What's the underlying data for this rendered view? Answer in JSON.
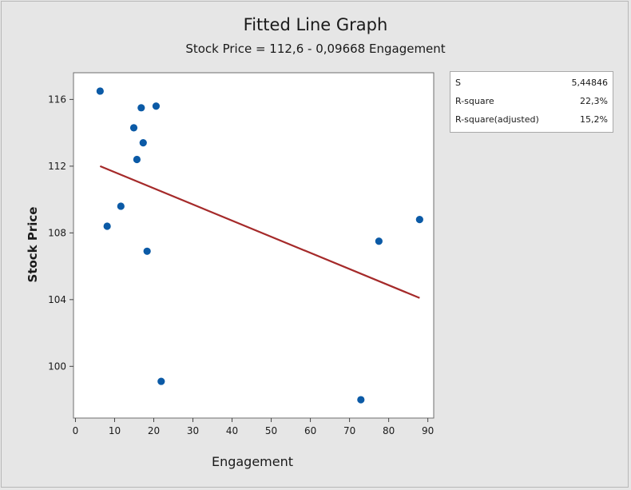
{
  "chart_data": {
    "type": "scatter",
    "title": "Fitted Line Graph",
    "subtitle": "Stock Price = 112,6 - 0,09668 Engagement",
    "xlabel": "Engagement",
    "ylabel": "Stock Price",
    "xlim": [
      -0.5,
      91.5
    ],
    "ylim": [
      96.9,
      117.6
    ],
    "xticks": [
      0,
      10,
      20,
      30,
      40,
      50,
      60,
      70,
      80,
      90
    ],
    "yticks": [
      100,
      104,
      108,
      112,
      116
    ],
    "point_color": "#0b5aa6",
    "line_color": "#a52a2a",
    "points": [
      {
        "x": 6.3,
        "y": 116.5
      },
      {
        "x": 8.1,
        "y": 108.4
      },
      {
        "x": 11.6,
        "y": 109.6
      },
      {
        "x": 14.9,
        "y": 114.3
      },
      {
        "x": 15.7,
        "y": 112.4
      },
      {
        "x": 16.8,
        "y": 115.5
      },
      {
        "x": 17.3,
        "y": 113.4
      },
      {
        "x": 18.3,
        "y": 106.9
      },
      {
        "x": 20.6,
        "y": 115.6
      },
      {
        "x": 21.9,
        "y": 99.1
      },
      {
        "x": 72.9,
        "y": 98.0
      },
      {
        "x": 77.5,
        "y": 107.5
      },
      {
        "x": 87.9,
        "y": 108.8
      }
    ],
    "fit_line": {
      "x": [
        6.3,
        87.9
      ],
      "y": [
        112.0,
        104.1
      ]
    },
    "stats": [
      {
        "label": "S",
        "value": "5,44846"
      },
      {
        "label": "R-square",
        "value": "22,3%"
      },
      {
        "label": "R-square(adjusted)",
        "value": "15,2%"
      }
    ]
  }
}
